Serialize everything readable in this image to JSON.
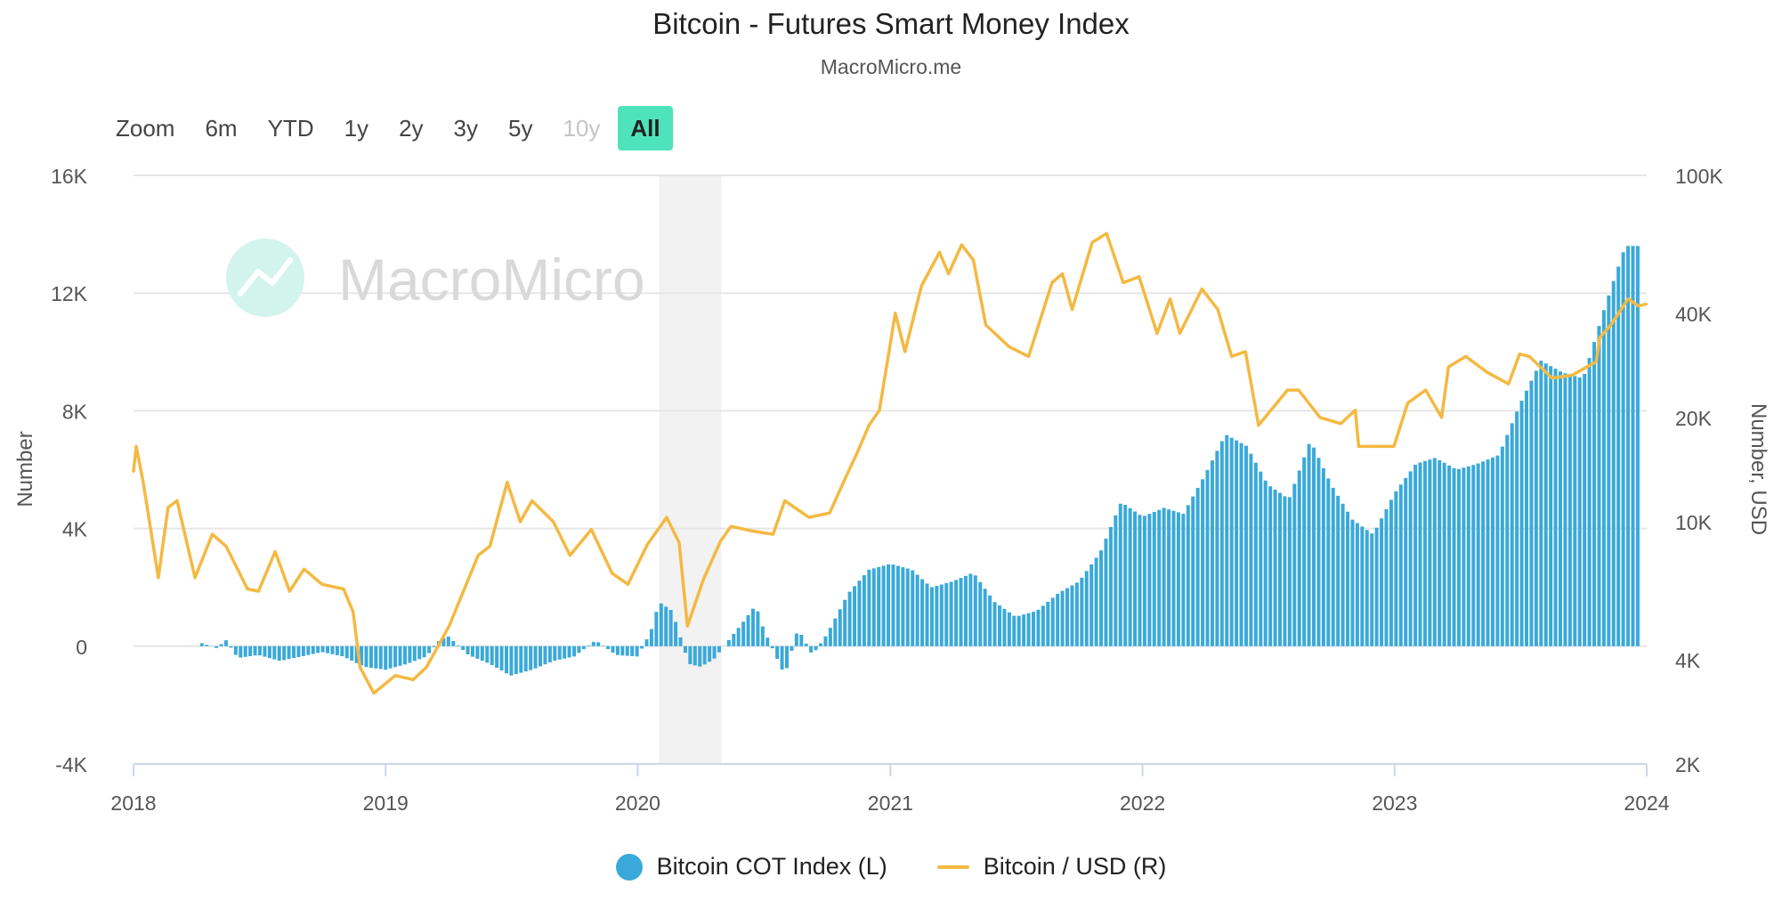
{
  "header": {
    "title": "Bitcoin - Futures Smart Money Index",
    "subtitle": "MacroMicro.me",
    "watermark": "MacroMicro"
  },
  "range_selector": {
    "zoom_label": "Zoom",
    "buttons": [
      {
        "label": "6m",
        "state": "normal"
      },
      {
        "label": "YTD",
        "state": "normal"
      },
      {
        "label": "1y",
        "state": "normal"
      },
      {
        "label": "2y",
        "state": "normal"
      },
      {
        "label": "3y",
        "state": "normal"
      },
      {
        "label": "5y",
        "state": "normal"
      },
      {
        "label": "10y",
        "state": "disabled"
      },
      {
        "label": "All",
        "state": "active"
      }
    ]
  },
  "colors": {
    "bars": "#3aa9d9",
    "line": "#f4b942",
    "grid": "#e6e6e6",
    "shade": "#f2f2f2",
    "watermark_icon": "#d3f4ec",
    "watermark_text": "#d9d9d9",
    "active_range": "#4ee3bb"
  },
  "chart_data": {
    "type": "bar+line",
    "title": "Bitcoin - Futures Smart Money Index",
    "subtitle": "MacroMicro.me",
    "x_ticks": [
      "2018",
      "2019",
      "2020",
      "2021",
      "2022",
      "2023",
      "2024"
    ],
    "xlim": [
      "2018-01-01",
      "2024-01-01"
    ],
    "left_axis": {
      "label": "Number",
      "ticks": [
        "-4K",
        "0",
        "4K",
        "8K",
        "12K",
        "16K"
      ],
      "ylim": [
        -4000,
        16000
      ]
    },
    "right_axis": {
      "label": "Number, USD",
      "scale": "log",
      "ticks": [
        "2K",
        "4K",
        "10K",
        "20K",
        "40K",
        "100K"
      ],
      "ylim": [
        2000,
        100000
      ]
    },
    "shaded_region": [
      "2020-02-01",
      "2020-05-01"
    ],
    "legend": [
      "Bitcoin COT Index (L)",
      "Bitcoin / USD (R)"
    ],
    "series": [
      {
        "name": "Bitcoin COT Index (L)",
        "type": "bar",
        "axis": "left",
        "points": [
          [
            "2018-04-10",
            100
          ],
          [
            "2018-05-01",
            -60
          ],
          [
            "2018-05-15",
            200
          ],
          [
            "2018-06-01",
            -400
          ],
          [
            "2018-07-01",
            -300
          ],
          [
            "2018-08-01",
            -500
          ],
          [
            "2018-09-01",
            -350
          ],
          [
            "2018-10-01",
            -200
          ],
          [
            "2018-11-01",
            -350
          ],
          [
            "2018-12-01",
            -700
          ],
          [
            "2019-01-01",
            -800
          ],
          [
            "2019-02-01",
            -600
          ],
          [
            "2019-03-01",
            -350
          ],
          [
            "2019-03-20",
            200
          ],
          [
            "2019-04-01",
            350
          ],
          [
            "2019-05-01",
            -300
          ],
          [
            "2019-06-01",
            -600
          ],
          [
            "2019-07-01",
            -1000
          ],
          [
            "2019-08-01",
            -800
          ],
          [
            "2019-09-01",
            -500
          ],
          [
            "2019-10-01",
            -350
          ],
          [
            "2019-11-01",
            200
          ],
          [
            "2019-12-01",
            -300
          ],
          [
            "2020-01-01",
            -350
          ],
          [
            "2020-01-20",
            500
          ],
          [
            "2020-02-01",
            1500
          ],
          [
            "2020-02-20",
            1200
          ],
          [
            "2020-03-15",
            -600
          ],
          [
            "2020-04-01",
            -700
          ],
          [
            "2020-04-20",
            -450
          ],
          [
            "2020-05-15",
            300
          ],
          [
            "2020-06-01",
            800
          ],
          [
            "2020-06-20",
            1400
          ],
          [
            "2020-07-01",
            600
          ],
          [
            "2020-08-01",
            -1000
          ],
          [
            "2020-08-20",
            600
          ],
          [
            "2020-09-10",
            -300
          ],
          [
            "2020-10-01",
            400
          ],
          [
            "2020-11-01",
            1800
          ],
          [
            "2020-12-01",
            2600
          ],
          [
            "2021-01-01",
            2800
          ],
          [
            "2021-02-01",
            2600
          ],
          [
            "2021-03-01",
            2000
          ],
          [
            "2021-04-01",
            2200
          ],
          [
            "2021-05-01",
            2500
          ],
          [
            "2021-06-01",
            1500
          ],
          [
            "2021-07-01",
            1000
          ],
          [
            "2021-08-01",
            1200
          ],
          [
            "2021-09-01",
            1800
          ],
          [
            "2021-10-01",
            2200
          ],
          [
            "2021-11-01",
            3200
          ],
          [
            "2021-12-01",
            4900
          ],
          [
            "2022-01-01",
            4400
          ],
          [
            "2022-02-01",
            4700
          ],
          [
            "2022-03-01",
            4500
          ],
          [
            "2022-04-01",
            5800
          ],
          [
            "2022-05-01",
            7200
          ],
          [
            "2022-06-01",
            6800
          ],
          [
            "2022-07-01",
            5500
          ],
          [
            "2022-08-01",
            5000
          ],
          [
            "2022-09-01",
            7000
          ],
          [
            "2022-10-01",
            5500
          ],
          [
            "2022-11-01",
            4300
          ],
          [
            "2022-12-01",
            3800
          ],
          [
            "2023-01-01",
            5200
          ],
          [
            "2023-02-01",
            6200
          ],
          [
            "2023-03-01",
            6400
          ],
          [
            "2023-04-01",
            6000
          ],
          [
            "2023-05-01",
            6200
          ],
          [
            "2023-06-01",
            6500
          ],
          [
            "2023-07-01",
            8200
          ],
          [
            "2023-08-01",
            9700
          ],
          [
            "2023-09-01",
            9300
          ],
          [
            "2023-10-01",
            9100
          ],
          [
            "2023-11-01",
            11500
          ],
          [
            "2023-12-01",
            13600
          ]
        ]
      },
      {
        "name": "Bitcoin / USD (R)",
        "type": "line",
        "axis": "right",
        "points": [
          [
            "2018-01-01",
            14000
          ],
          [
            "2018-01-05",
            16500
          ],
          [
            "2018-01-15",
            13000
          ],
          [
            "2018-02-06",
            6900
          ],
          [
            "2018-02-20",
            11000
          ],
          [
            "2018-03-05",
            11500
          ],
          [
            "2018-03-31",
            6900
          ],
          [
            "2018-04-25",
            9200
          ],
          [
            "2018-05-15",
            8500
          ],
          [
            "2018-06-15",
            6400
          ],
          [
            "2018-07-01",
            6300
          ],
          [
            "2018-07-25",
            8200
          ],
          [
            "2018-08-15",
            6300
          ],
          [
            "2018-09-05",
            7300
          ],
          [
            "2018-10-01",
            6600
          ],
          [
            "2018-11-01",
            6400
          ],
          [
            "2018-11-15",
            5500
          ],
          [
            "2018-11-25",
            3800
          ],
          [
            "2018-12-15",
            3200
          ],
          [
            "2019-01-15",
            3600
          ],
          [
            "2019-02-10",
            3500
          ],
          [
            "2019-03-01",
            3800
          ],
          [
            "2019-04-03",
            5000
          ],
          [
            "2019-05-15",
            8000
          ],
          [
            "2019-06-01",
            8500
          ],
          [
            "2019-06-26",
            13000
          ],
          [
            "2019-07-15",
            10000
          ],
          [
            "2019-08-01",
            11500
          ],
          [
            "2019-09-01",
            10000
          ],
          [
            "2019-09-25",
            8000
          ],
          [
            "2019-10-26",
            9500
          ],
          [
            "2019-11-25",
            7100
          ],
          [
            "2019-12-18",
            6600
          ],
          [
            "2020-01-15",
            8600
          ],
          [
            "2020-02-12",
            10300
          ],
          [
            "2020-03-01",
            8700
          ],
          [
            "2020-03-13",
            5000
          ],
          [
            "2020-04-05",
            6800
          ],
          [
            "2020-04-30",
            8800
          ],
          [
            "2020-05-15",
            9700
          ],
          [
            "2020-06-15",
            9400
          ],
          [
            "2020-07-15",
            9200
          ],
          [
            "2020-08-01",
            11500
          ],
          [
            "2020-09-05",
            10300
          ],
          [
            "2020-10-05",
            10600
          ],
          [
            "2020-10-25",
            13000
          ],
          [
            "2020-11-15",
            16000
          ],
          [
            "2020-12-01",
            19000
          ],
          [
            "2020-12-16",
            21000
          ],
          [
            "2021-01-08",
            40000
          ],
          [
            "2021-01-22",
            31000
          ],
          [
            "2021-02-15",
            48000
          ],
          [
            "2021-03-13",
            60000
          ],
          [
            "2021-03-26",
            52000
          ],
          [
            "2021-04-14",
            63000
          ],
          [
            "2021-05-01",
            57000
          ],
          [
            "2021-05-19",
            37000
          ],
          [
            "2021-06-22",
            32000
          ],
          [
            "2021-07-20",
            30000
          ],
          [
            "2021-08-23",
            49000
          ],
          [
            "2021-09-07",
            52000
          ],
          [
            "2021-09-21",
            41000
          ],
          [
            "2021-10-20",
            64000
          ],
          [
            "2021-11-10",
            68000
          ],
          [
            "2021-12-04",
            49000
          ],
          [
            "2021-12-27",
            51000
          ],
          [
            "2022-01-22",
            35000
          ],
          [
            "2022-02-10",
            44000
          ],
          [
            "2022-02-24",
            35000
          ],
          [
            "2022-03-28",
            47000
          ],
          [
            "2022-04-20",
            41000
          ],
          [
            "2022-05-10",
            30000
          ],
          [
            "2022-05-30",
            31000
          ],
          [
            "2022-06-18",
            19000
          ],
          [
            "2022-07-30",
            24000
          ],
          [
            "2022-08-15",
            24000
          ],
          [
            "2022-09-15",
            20000
          ],
          [
            "2022-10-15",
            19200
          ],
          [
            "2022-11-05",
            21000
          ],
          [
            "2022-11-10",
            16500
          ],
          [
            "2022-12-31",
            16500
          ],
          [
            "2023-01-20",
            22000
          ],
          [
            "2023-02-15",
            24000
          ],
          [
            "2023-03-10",
            20000
          ],
          [
            "2023-03-20",
            28000
          ],
          [
            "2023-04-14",
            30000
          ],
          [
            "2023-05-15",
            27000
          ],
          [
            "2023-06-15",
            25000
          ],
          [
            "2023-07-01",
            30500
          ],
          [
            "2023-07-15",
            30000
          ],
          [
            "2023-08-17",
            26000
          ],
          [
            "2023-09-15",
            26500
          ],
          [
            "2023-10-20",
            29000
          ],
          [
            "2023-10-25",
            34000
          ],
          [
            "2023-11-10",
            37000
          ],
          [
            "2023-12-05",
            44000
          ],
          [
            "2023-12-20",
            42000
          ],
          [
            "2023-12-31",
            42500
          ]
        ]
      }
    ]
  }
}
